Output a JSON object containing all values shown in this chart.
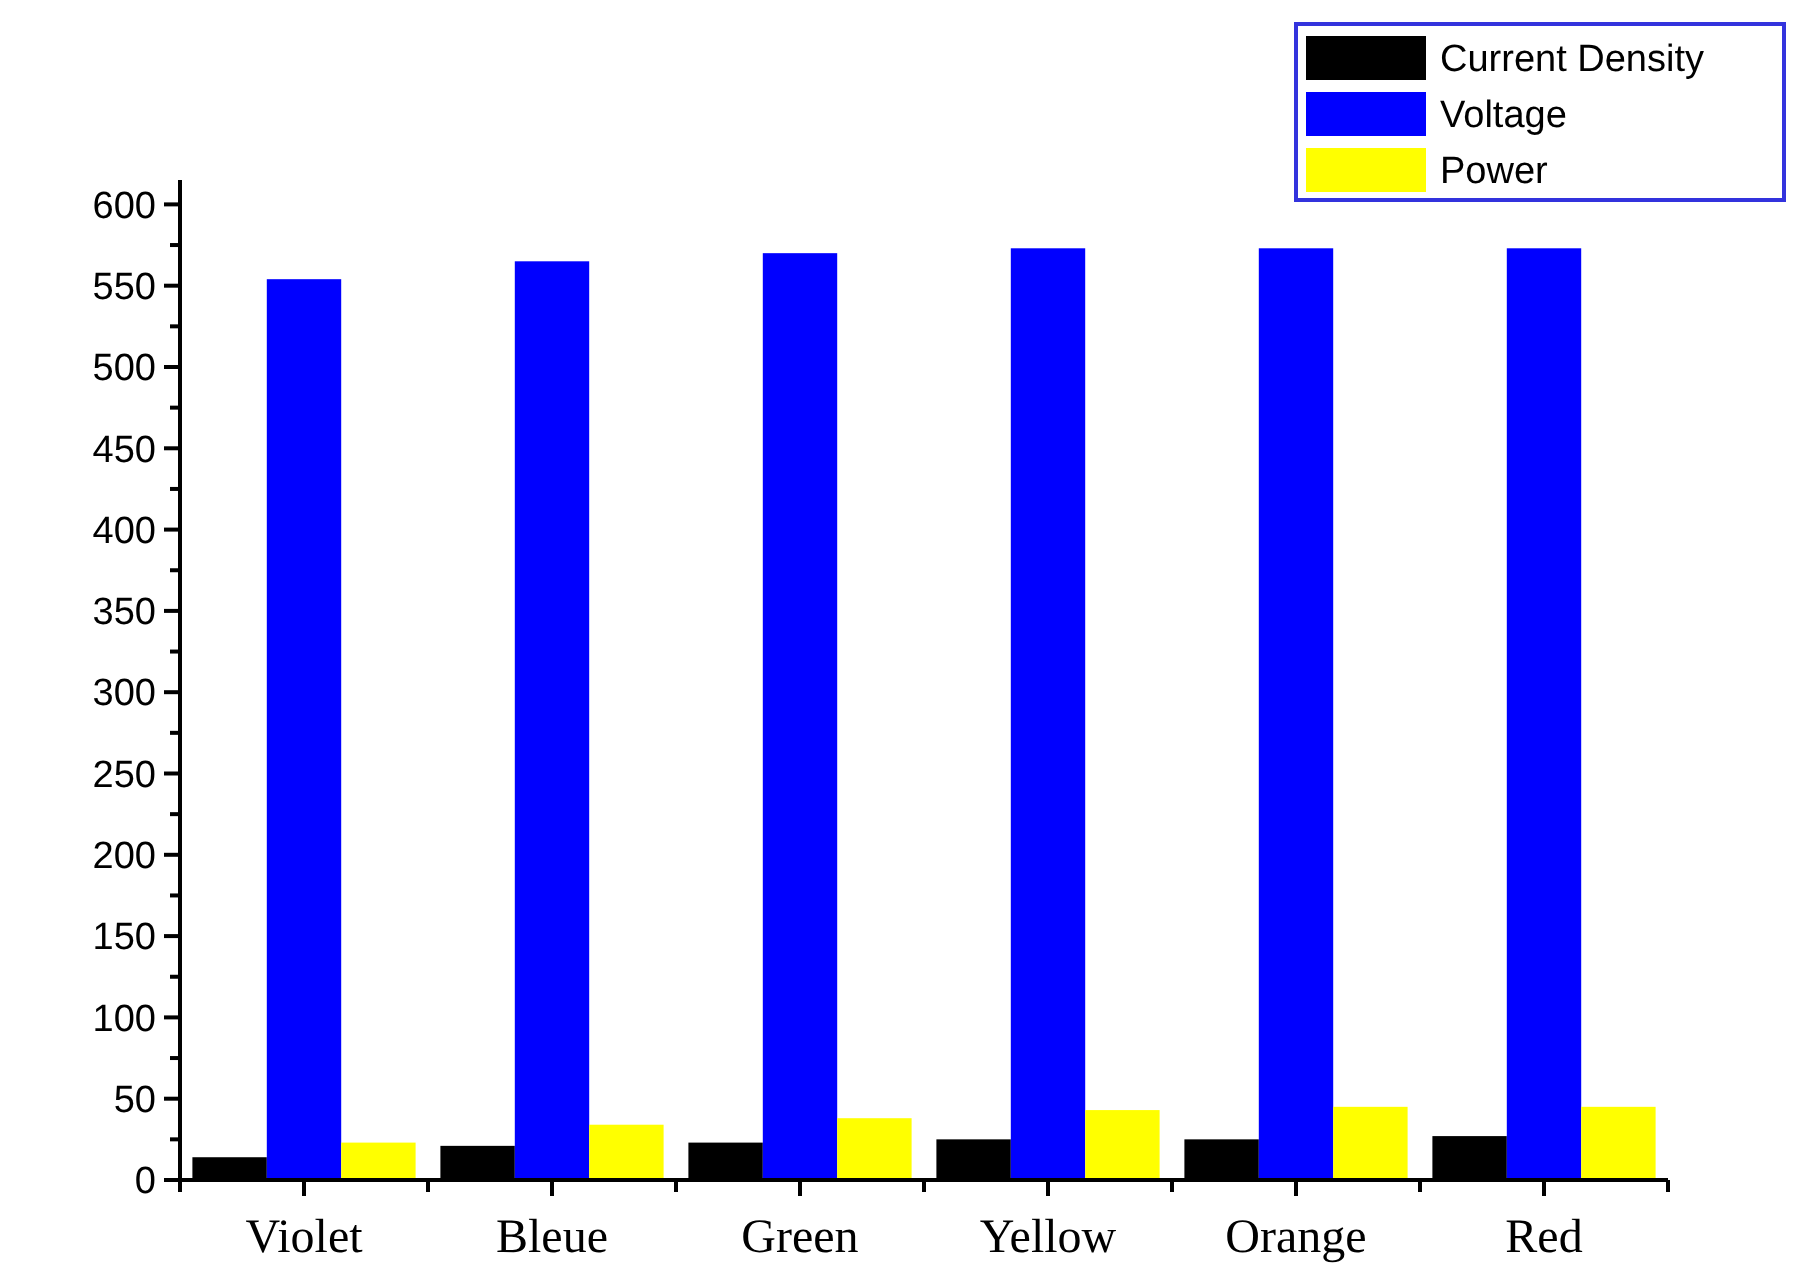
{
  "chart_data": {
    "type": "bar",
    "categories": [
      "Violet",
      "Bleue",
      "Green",
      "Yellow",
      "Orange",
      "Red"
    ],
    "series": [
      {
        "name": "Current Density",
        "color": "#000000",
        "values": [
          14,
          21,
          23,
          25,
          25,
          27
        ]
      },
      {
        "name": "Voltage",
        "color": "#0000ff",
        "values": [
          554,
          565,
          570,
          573,
          573,
          573
        ]
      },
      {
        "name": "Power",
        "color": "#ffff00",
        "values": [
          23,
          34,
          38,
          43,
          45,
          45
        ]
      }
    ],
    "ylim": [
      0,
      615
    ],
    "yticks": [
      0,
      50,
      100,
      150,
      200,
      250,
      300,
      350,
      400,
      450,
      500,
      550,
      600
    ],
    "grid": false,
    "legend": "top right"
  }
}
